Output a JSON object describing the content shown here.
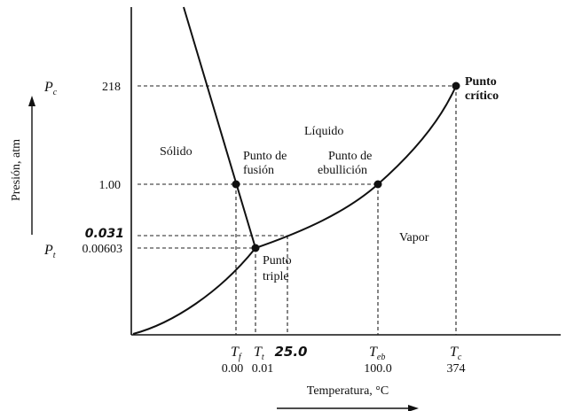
{
  "y_axis": {
    "title": "Presión, atm",
    "ticks": [
      {
        "sym": "P",
        "sub": "c",
        "value": "218"
      },
      {
        "value": "1.00"
      },
      {
        "value": "0.031",
        "emphasis": true
      },
      {
        "sym": "P",
        "sub": "t",
        "value": "0.00603"
      }
    ]
  },
  "x_axis": {
    "title": "Temperatura, °C",
    "ticks": [
      {
        "sym": "T",
        "sub": "f",
        "value": "0.00"
      },
      {
        "sym": "T",
        "sub": "t",
        "value": "0.01"
      },
      {
        "value": "25.0",
        "emphasis": true
      },
      {
        "sym": "T",
        "sub": "eb",
        "value": "100.0"
      },
      {
        "sym": "T",
        "sub": "c",
        "value": "374"
      }
    ]
  },
  "regions": {
    "solid": "Sólido",
    "liquid": "Líquido",
    "vapor": "Vapor"
  },
  "points": {
    "critical": [
      "Punto",
      "crítico"
    ],
    "fusion": [
      "Punto de",
      "fusión"
    ],
    "boiling": [
      "Punto de",
      "ebullición"
    ],
    "triple": [
      "Punto",
      "triple"
    ]
  }
}
